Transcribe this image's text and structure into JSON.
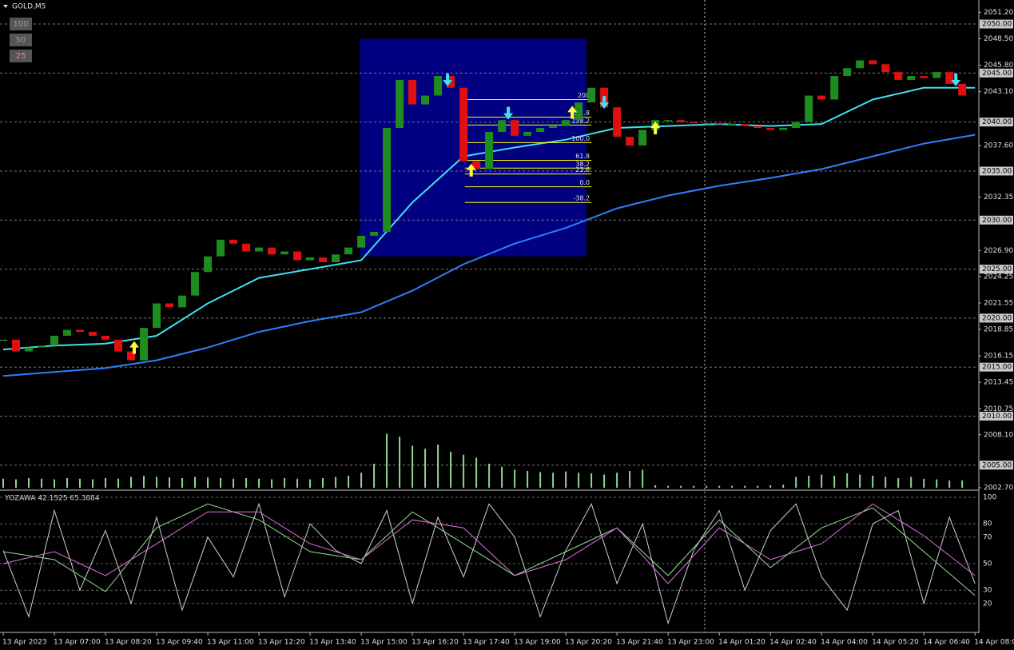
{
  "chart_data": [
    {
      "type": "candlestick",
      "title": "GOLD,M5",
      "close": [
        2017.8,
        2016.6,
        2017.0,
        2017.2,
        2018.2,
        2018.8,
        2018.6,
        2018.2,
        2017.8,
        2016.6,
        2015.7,
        2019.0,
        2021.5,
        2021.1,
        2022.3,
        2024.7,
        2026.3,
        2028.0,
        2027.6,
        2026.8,
        2027.2,
        2026.5,
        2026.8,
        2025.9,
        2026.2,
        2025.7,
        2026.5,
        2027.2,
        2028.4,
        2028.8,
        2039.4,
        2044.3,
        2041.8,
        2042.7,
        2044.7,
        2043.5,
        2036.0,
        2035.2,
        2039.0,
        2040.2,
        2038.6,
        2039.0,
        2039.4,
        2039.6,
        2040.2,
        2042.0,
        2043.5,
        2041.5,
        2038.5,
        2037.6,
        2039.2,
        2040.2,
        2040.2,
        2040.0,
        2039.9,
        2039.9,
        2039.8,
        2039.8,
        2039.6,
        2039.4,
        2039.2,
        2039.4,
        2040.0,
        2042.7,
        2042.3,
        2044.7,
        2045.5,
        2046.3,
        2045.9,
        2045.1,
        2044.3,
        2044.7,
        2044.5,
        2045.1,
        2043.9,
        2042.7
      ],
      "up_color": "#1e8c1e",
      "down_color": "#e01010",
      "xlim": [
        -0.25,
        76.3
      ],
      "ylim": [
        2002.7,
        2052.37
      ],
      "xticks": [
        {
          "value": 0,
          "label": "13 Apr 2023"
        },
        {
          "value": 4,
          "label": "13 Apr 07:00"
        },
        {
          "value": 8,
          "label": "13 Apr 08:20"
        },
        {
          "value": 12,
          "label": "13 Apr 09:40"
        },
        {
          "value": 16,
          "label": "13 Apr 11:00"
        },
        {
          "value": 20,
          "label": "13 Apr 12:20"
        },
        {
          "value": 24,
          "label": "13 Apr 13:40"
        },
        {
          "value": 28,
          "label": "13 Apr 15:00"
        },
        {
          "value": 32,
          "label": "13 Apr 16:20"
        },
        {
          "value": 36,
          "label": "13 Apr 17:40"
        },
        {
          "value": 40,
          "label": "13 Apr 19:00"
        },
        {
          "value": 44,
          "label": "13 Apr 20:20"
        },
        {
          "value": 48,
          "label": "13 Apr 21:40"
        },
        {
          "value": 52,
          "label": "13 Apr 23:00"
        },
        {
          "value": 56,
          "label": "14 Apr 01:20"
        },
        {
          "value": 60,
          "label": "14 Apr 02:40"
        },
        {
          "value": 64,
          "label": "14 Apr 04:00"
        },
        {
          "value": 68,
          "label": "14 Apr 05:20"
        },
        {
          "value": 72,
          "label": "14 Apr 06:40"
        },
        {
          "value": 76,
          "label": "14 Apr 08:00"
        }
      ],
      "yticks": [
        {
          "value": 2051.2,
          "label": "2051.20"
        },
        {
          "value": 2048.5,
          "label": "2048.50"
        },
        {
          "value": 2045.8,
          "label": "2045.80"
        },
        {
          "value": 2043.1,
          "label": "2043.10"
        },
        {
          "value": 2037.6,
          "label": "2037.60"
        },
        {
          "value": 2032.35,
          "label": "2032.35"
        },
        {
          "value": 2026.9,
          "label": "2026.90"
        },
        {
          "value": 2024.25,
          "label": "2024.25"
        },
        {
          "value": 2021.55,
          "label": "2021.55"
        },
        {
          "value": 2018.85,
          "label": "2018.85"
        },
        {
          "value": 2016.15,
          "label": "2016.15"
        },
        {
          "value": 2013.45,
          "label": "2013.45"
        },
        {
          "value": 2010.75,
          "label": "2010.75"
        },
        {
          "value": 2008.1,
          "label": "2008.10"
        },
        {
          "value": 2002.7,
          "label": "2002.70"
        }
      ],
      "grid_ticks": [
        {
          "value": 2050,
          "label": "2050.00"
        },
        {
          "value": 2045,
          "label": "2045.00"
        },
        {
          "value": 2040,
          "label": "2040.00"
        },
        {
          "value": 2035,
          "label": "2035.00"
        },
        {
          "value": 2030,
          "label": "2030.00"
        },
        {
          "value": 2025,
          "label": "2025.00"
        },
        {
          "value": 2020,
          "label": "2020.00"
        },
        {
          "value": 2015,
          "label": "2015.00"
        },
        {
          "value": 2010,
          "label": "2010.00"
        },
        {
          "value": 2005,
          "label": "2005.00"
        }
      ],
      "lines": [
        {
          "color": "#40e0f0",
          "x": [
            0,
            4,
            8,
            12,
            16,
            20,
            24,
            28,
            32,
            36,
            40,
            44,
            48,
            52,
            56,
            60,
            64,
            68,
            72,
            76
          ],
          "values": [
            2016.8,
            2017.2,
            2017.4,
            2018.2,
            2021.5,
            2024.1,
            2025.0,
            2025.9,
            2031.8,
            2036.5,
            2037.4,
            2038.2,
            2039.4,
            2039.6,
            2039.8,
            2039.6,
            2039.8,
            2042.3,
            2043.5,
            2043.5
          ]
        },
        {
          "color": "#2f7fff",
          "x": [
            0,
            4,
            8,
            12,
            16,
            20,
            24,
            28,
            32,
            36,
            40,
            44,
            48,
            52,
            56,
            60,
            64,
            68,
            72,
            76
          ],
          "values": [
            2014.1,
            2014.5,
            2014.9,
            2015.7,
            2017.0,
            2018.6,
            2019.7,
            2020.6,
            2022.8,
            2025.5,
            2027.6,
            2029.2,
            2031.2,
            2032.5,
            2033.5,
            2034.3,
            2035.2,
            2036.5,
            2037.8,
            2038.7
          ]
        }
      ],
      "volume": {
        "color": "#8fd88f",
        "ylim": [
          0,
          100
        ],
        "values": [
          15,
          14,
          16,
          15,
          14,
          16,
          15,
          14,
          16,
          15,
          18,
          20,
          18,
          17,
          16,
          18,
          17,
          16,
          15,
          16,
          15,
          14,
          16,
          15,
          14,
          16,
          18,
          20,
          25,
          40,
          90,
          85,
          70,
          65,
          72,
          60,
          55,
          50,
          40,
          35,
          30,
          28,
          26,
          25,
          27,
          25,
          24,
          22,
          25,
          28,
          30,
          4,
          3,
          3,
          3,
          3,
          3,
          3,
          3,
          3,
          4,
          5,
          18,
          20,
          22,
          20,
          24,
          22,
          20,
          18,
          16,
          18,
          15,
          14,
          12,
          12
        ]
      },
      "zone": {
        "color": "#000080",
        "x": [
          27.9,
          45.6
        ],
        "y": [
          2026.3,
          2048.5
        ]
      },
      "fib": {
        "color": "#ffff00",
        "x": [
          36.1,
          46
        ],
        "levels": [
          {
            "label": "200",
            "value": 2042.3
          },
          {
            "label": "161.8",
            "value": 2040.5
          },
          {
            "label": "138.2",
            "value": 2039.7
          },
          {
            "label": "100.0",
            "value": 2037.9
          },
          {
            "label": "61.8",
            "value": 2036.1
          },
          {
            "label": "38.2",
            "value": 2035.3
          },
          {
            "label": "23.6",
            "value": 2034.7
          },
          {
            "label": "0.0",
            "value": 2033.4
          },
          {
            "label": "-38.2",
            "value": 2031.8
          }
        ]
      },
      "buy_arrows": {
        "color": "#ffff40",
        "x": [
          10.25,
          36.6,
          44.5,
          51
        ],
        "y": [
          2017.0,
          2035.1,
          2041.0,
          2039.4
        ]
      },
      "sell_arrows": {
        "color": "#40e0f0",
        "x": [
          34.75,
          39.5,
          47,
          74.5
        ],
        "y": [
          2044.3,
          2040.9,
          2042.0,
          2044.3
        ]
      }
    },
    {
      "type": "line",
      "title": "YOZAWA 42.1525 65.3884",
      "xlim": [
        -0.25,
        76.3
      ],
      "ylim": [
        -1.2,
        104.2
      ],
      "yticks": [
        100,
        80,
        70,
        50,
        30,
        20
      ],
      "series": [
        {
          "color": "#d0d0d0",
          "x": [
            0,
            2,
            4,
            6,
            8,
            10,
            12,
            14,
            16,
            18,
            20,
            22,
            24,
            26,
            28,
            30,
            32,
            34,
            36,
            38,
            40,
            42,
            44,
            46,
            48,
            50,
            52,
            54,
            56,
            58,
            60,
            62,
            64,
            66,
            68,
            70,
            72,
            74,
            76
          ],
          "values": [
            60,
            10,
            90,
            30,
            75,
            20,
            85,
            15,
            70,
            40,
            95,
            25,
            80,
            60,
            50,
            90,
            20,
            85,
            40,
            95,
            70,
            10,
            60,
            95,
            35,
            80,
            5,
            60,
            90,
            30,
            75,
            95,
            40,
            15,
            80,
            90,
            20,
            85,
            35
          ]
        },
        {
          "color": "#90e090",
          "x": [
            0,
            4,
            8,
            12,
            16,
            20,
            24,
            28,
            32,
            36,
            40,
            44,
            48,
            52,
            56,
            60,
            64,
            68,
            72,
            76
          ],
          "values": [
            59,
            53,
            29,
            77,
            95,
            83,
            59,
            53,
            89,
            65,
            41,
            59,
            77,
            41,
            83,
            47,
            77,
            92,
            59,
            26
          ]
        },
        {
          "color": "#e070e0",
          "x": [
            0,
            4,
            8,
            12,
            16,
            20,
            24,
            28,
            32,
            36,
            40,
            44,
            48,
            52,
            56,
            60,
            64,
            68,
            72,
            76
          ],
          "values": [
            50,
            59,
            41,
            65,
            89,
            89,
            65,
            53,
            83,
            77,
            41,
            53,
            77,
            35,
            77,
            53,
            65,
            95,
            71,
            41
          ]
        }
      ]
    }
  ],
  "buttons": [
    "100",
    "50",
    "25"
  ]
}
